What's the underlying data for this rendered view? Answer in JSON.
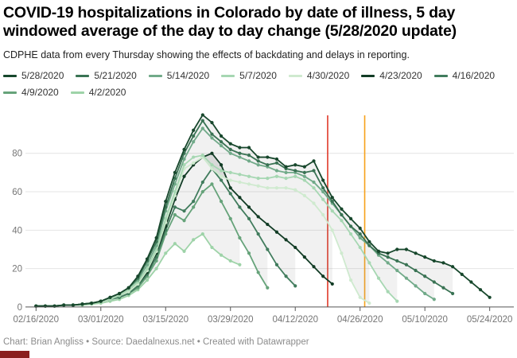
{
  "header": {
    "title": "COVID-19 hospitalizations in Colorado by date of illness, 5 day windowed average of the day to day change (5/28/2020 update)",
    "subtitle": "CDPHE data from every Thursday showing the effects of backdating and delays in reporting."
  },
  "footer": {
    "text": "Chart: Brian Angliss • Source: Daedalnexus.net • Created with Datawrapper"
  },
  "chart_data": {
    "type": "line",
    "title": "COVID-19 hospitalizations in Colorado by date of illness, 5 day windowed average of the day to day change (5/28/2020 update)",
    "xlabel": "",
    "ylabel": "",
    "ylim": [
      0,
      100
    ],
    "y_ticks": [
      0,
      20,
      40,
      60,
      80
    ],
    "grid": "horizontal",
    "legend_position": "top",
    "band_fill": "rgba(140,140,140,0.12)",
    "x_tick_labels": [
      "02/16/2020",
      "03/01/2020",
      "03/15/2020",
      "03/29/2020",
      "04/12/2020",
      "04/26/2020",
      "05/10/2020",
      "05/24/2020"
    ],
    "dates": [
      "02/16",
      "02/18",
      "02/20",
      "02/22",
      "02/24",
      "02/26",
      "02/28",
      "03/01",
      "03/03",
      "03/05",
      "03/07",
      "03/09",
      "03/11",
      "03/13",
      "03/15",
      "03/17",
      "03/19",
      "03/21",
      "03/23",
      "03/25",
      "03/27",
      "03/29",
      "03/31",
      "04/02",
      "04/04",
      "04/06",
      "04/08",
      "04/10",
      "04/12",
      "04/14",
      "04/16",
      "04/18",
      "04/20",
      "04/22",
      "04/24",
      "04/26",
      "04/28",
      "04/30",
      "05/02",
      "05/04",
      "05/06",
      "05/08",
      "05/10",
      "05/12",
      "05/14",
      "05/16",
      "05/18",
      "05/20",
      "05/22",
      "05/24"
    ],
    "series": [
      {
        "name": "5/28/2020",
        "color": "#17472c",
        "values": [
          0.5,
          0.5,
          0.5,
          1,
          1,
          1.5,
          2,
          3,
          5,
          7,
          10,
          16,
          25,
          36,
          55,
          70,
          82,
          92,
          100,
          96,
          89,
          85,
          83,
          83,
          78,
          78,
          77,
          73,
          74,
          73,
          76,
          66,
          57,
          51,
          46,
          41,
          34,
          29,
          28,
          30,
          30,
          28,
          26,
          24,
          23,
          21,
          17,
          13,
          9,
          5
        ]
      },
      {
        "name": "5/21/2020",
        "color": "#3a7354",
        "values": [
          0.5,
          0.5,
          0.5,
          1,
          1,
          1.5,
          2,
          3,
          5,
          7,
          10,
          15,
          24,
          34,
          52,
          67,
          80,
          89,
          97,
          90,
          86,
          82,
          80,
          79,
          76,
          74,
          75,
          72,
          71,
          70,
          71,
          62,
          55,
          48,
          42,
          38,
          32,
          28,
          26,
          24,
          22,
          19,
          16,
          13,
          10,
          7,
          null,
          null,
          null,
          null
        ]
      },
      {
        "name": "5/14/2020",
        "color": "#71aa89",
        "values": [
          0.5,
          0.5,
          0.5,
          1,
          1,
          1.5,
          2,
          3,
          5,
          7,
          10,
          14,
          22,
          32,
          50,
          64,
          77,
          86,
          93,
          88,
          84,
          80,
          78,
          76,
          74,
          73,
          71,
          70,
          70,
          68,
          65,
          60,
          54,
          48,
          42,
          36,
          32,
          27,
          23,
          19,
          15,
          11,
          7,
          4,
          null,
          null,
          null,
          null,
          null,
          null
        ]
      },
      {
        "name": "5/7/2020",
        "color": "#a6d7b2",
        "values": [
          0.5,
          0.5,
          0.5,
          1,
          1,
          1.5,
          2,
          3,
          4,
          6,
          9,
          13,
          20,
          30,
          46,
          60,
          74,
          78,
          79,
          74,
          71,
          70,
          69,
          68,
          67,
          67,
          68,
          67,
          68,
          66,
          62,
          56,
          50,
          45,
          38,
          31,
          23,
          15,
          8,
          3,
          null,
          null,
          null,
          null,
          null,
          null,
          null,
          null,
          null,
          null
        ]
      },
      {
        "name": "4/30/2020",
        "color": "#cfeacf",
        "values": [
          0.5,
          0.5,
          0.5,
          1,
          1,
          1.5,
          2,
          3,
          4,
          6,
          8,
          12,
          19,
          29,
          44,
          58,
          72,
          75,
          78,
          72,
          68,
          66,
          65,
          64,
          63,
          62,
          62,
          62,
          61,
          58,
          54,
          48,
          40,
          28,
          14,
          5,
          2,
          null,
          null,
          null,
          null,
          null,
          null,
          null,
          null,
          null,
          null,
          null,
          null,
          null
        ]
      },
      {
        "name": "4/23/2020",
        "color": "#123c25",
        "values": [
          0.5,
          0.5,
          0.5,
          1,
          1,
          1.5,
          2,
          3,
          4,
          6,
          8,
          12,
          18,
          28,
          42,
          56,
          68,
          74,
          78,
          80,
          74,
          62,
          57,
          52,
          47,
          43,
          39,
          35,
          31,
          26,
          21,
          16,
          12,
          null,
          null,
          null,
          null,
          null,
          null,
          null,
          null,
          null,
          null,
          null,
          null,
          null,
          null,
          null,
          null,
          null
        ]
      },
      {
        "name": "4/16/2020",
        "color": "#417c5d",
        "values": [
          0.5,
          0.5,
          0.5,
          1,
          1,
          1.5,
          2,
          3,
          4,
          5,
          7,
          11,
          17,
          26,
          40,
          52,
          50,
          55,
          65,
          72,
          66,
          59,
          52,
          46,
          38,
          30,
          22,
          16,
          11,
          null,
          null,
          null,
          null,
          null,
          null,
          null,
          null,
          null,
          null,
          null,
          null,
          null,
          null,
          null,
          null,
          null,
          null,
          null,
          null,
          null
        ]
      },
      {
        "name": "4/9/2020",
        "color": "#66a37a",
        "values": [
          0.5,
          0.5,
          0.5,
          1,
          1,
          1.5,
          2,
          3,
          4,
          5,
          7,
          10,
          16,
          24,
          38,
          48,
          45,
          52,
          60,
          64,
          55,
          46,
          36,
          28,
          18,
          10,
          null,
          null,
          null,
          null,
          null,
          null,
          null,
          null,
          null,
          null,
          null,
          null,
          null,
          null,
          null,
          null,
          null,
          null,
          null,
          null,
          null,
          null,
          null,
          null
        ]
      },
      {
        "name": "4/2/2020",
        "color": "#9ed3a8",
        "values": [
          0.5,
          0.5,
          0.5,
          1,
          1,
          1,
          1.5,
          2,
          3,
          4,
          6,
          9,
          14,
          20,
          28,
          33,
          29,
          35,
          38,
          31,
          27,
          24,
          22,
          null,
          null,
          null,
          null,
          null,
          null,
          null,
          null,
          null,
          null,
          null,
          null,
          null,
          null,
          null,
          null,
          null,
          null,
          null,
          null,
          null,
          null,
          null,
          null,
          null,
          null,
          null
        ]
      }
    ],
    "annotations": {
      "vlines": [
        {
          "date": "04/19/2020",
          "color": "#e03a2a"
        },
        {
          "date": "04/27/2020",
          "color": "#f7a11a"
        }
      ]
    }
  }
}
